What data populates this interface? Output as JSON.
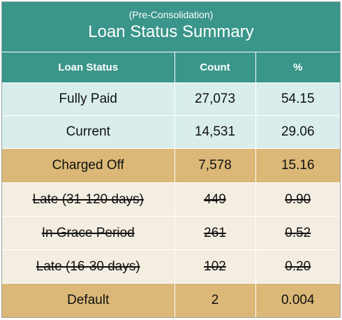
{
  "table": {
    "subtitle": "(Pre-Consolidation)",
    "title": "Loan Status Summary",
    "columns": [
      "Loan Status",
      "Count",
      "%"
    ],
    "rows": [
      {
        "status": "Fully Paid",
        "count": "27,073",
        "pct": "54.15",
        "style": "teal",
        "struck": false
      },
      {
        "status": "Current",
        "count": "14,531",
        "pct": "29.06",
        "style": "teal",
        "struck": false
      },
      {
        "status": "Charged Off",
        "count": "7,578",
        "pct": "15.16",
        "style": "gold",
        "struck": false
      },
      {
        "status": "Late (31-120 days)",
        "count": "449",
        "pct": "0.90",
        "style": "cream",
        "struck": true
      },
      {
        "status": "In Grace Period",
        "count": "261",
        "pct": "0.52",
        "style": "cream",
        "struck": true
      },
      {
        "status": "Late (16-30 days)",
        "count": "102",
        "pct": "0.20",
        "style": "cream",
        "struck": true
      },
      {
        "status": "Default",
        "count": "2",
        "pct": "0.004",
        "style": "gold",
        "struck": false
      }
    ]
  },
  "colors": {
    "header": "#3a958a",
    "teal_row": "#d9eeec",
    "gold_row": "#dbb877",
    "cream_row": "#f4ede1"
  }
}
